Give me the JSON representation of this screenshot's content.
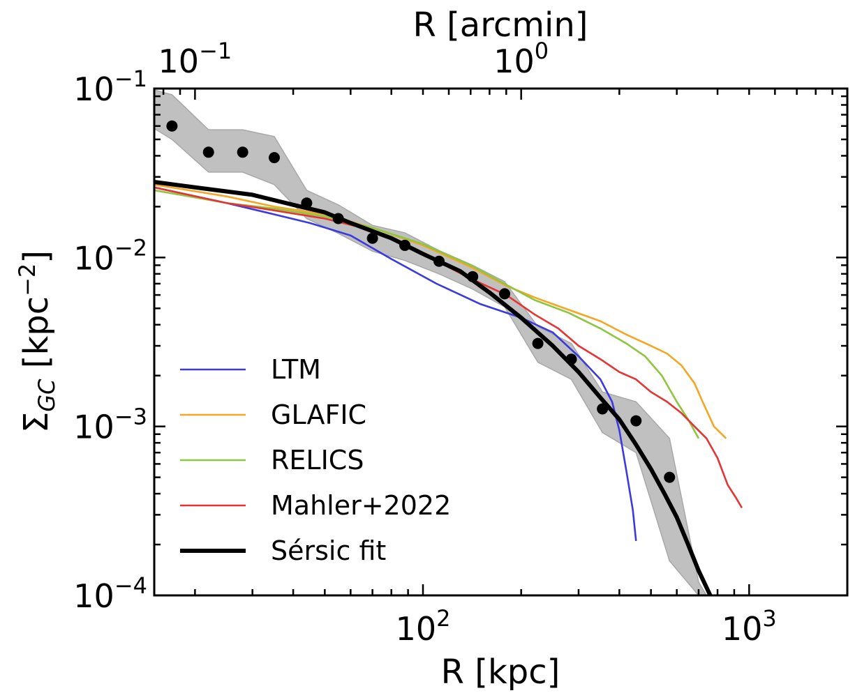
{
  "chart_data": {
    "type": "line",
    "xlabel": "R [kpc]",
    "ylabel_main": "Σ",
    "ylabel_sub": "GC",
    "ylabel_unit": " [kpc",
    "ylabel_unit_exp": "−2",
    "ylabel_close": "]",
    "x2label": "R [arcmin]",
    "xscale": "log",
    "yscale": "log",
    "xlim": [
      15,
      2000
    ],
    "ylim": [
      0.0001,
      0.1
    ],
    "arcmin_to_kpc": 200,
    "x_ticks": [
      {
        "value": 100,
        "base": "10",
        "exp": "2"
      },
      {
        "value": 1000,
        "base": "10",
        "exp": "3"
      }
    ],
    "y_ticks": [
      {
        "value": 0.1,
        "base": "10",
        "exp": "−1"
      },
      {
        "value": 0.01,
        "base": "10",
        "exp": "−2"
      },
      {
        "value": 0.001,
        "base": "10",
        "exp": "−3"
      },
      {
        "value": 0.0001,
        "base": "10",
        "exp": "−4"
      }
    ],
    "x2_ticks": [
      {
        "value": 0.1,
        "base": "10",
        "exp": "−1"
      },
      {
        "value": 1,
        "base": "10",
        "exp": "0"
      }
    ],
    "legend_position": "lower-left",
    "series": [
      {
        "name": "LTM",
        "color": "#3a3ae0",
        "x": [
          15,
          25,
          35,
          45,
          60,
          80,
          110,
          150,
          200,
          250,
          300,
          350,
          380,
          400,
          420,
          440,
          450
        ],
        "y": [
          0.026,
          0.021,
          0.018,
          0.016,
          0.0135,
          0.0098,
          0.007,
          0.0053,
          0.0044,
          0.0036,
          0.0026,
          0.0019,
          0.0014,
          0.00095,
          0.00055,
          0.00032,
          0.00021
        ]
      },
      {
        "name": "GLAFIC",
        "color": "#f5a623",
        "x": [
          15,
          25,
          35,
          50,
          70,
          100,
          140,
          180,
          220,
          280,
          350,
          420,
          500,
          560,
          620,
          680,
          720,
          780,
          850
        ],
        "y": [
          0.027,
          0.023,
          0.02,
          0.018,
          0.015,
          0.0118,
          0.0088,
          0.0068,
          0.0058,
          0.0049,
          0.0042,
          0.0035,
          0.003,
          0.0027,
          0.0023,
          0.0018,
          0.0014,
          0.001,
          0.00085
        ]
      },
      {
        "name": "RELICS",
        "color": "#8ec63f",
        "x": [
          15,
          25,
          35,
          50,
          70,
          100,
          140,
          180,
          220,
          280,
          350,
          420,
          480,
          540,
          600,
          650,
          700
        ],
        "y": [
          0.025,
          0.021,
          0.0195,
          0.0175,
          0.015,
          0.012,
          0.009,
          0.0069,
          0.0056,
          0.0047,
          0.0038,
          0.0031,
          0.0026,
          0.002,
          0.0014,
          0.0011,
          0.00085
        ]
      },
      {
        "name": "Mahler+2022",
        "color": "#e63333",
        "x": [
          15,
          25,
          35,
          50,
          70,
          100,
          140,
          180,
          220,
          260,
          300,
          350,
          400,
          450,
          500,
          560,
          620,
          680,
          740,
          800,
          860,
          910,
          950
        ],
        "y": [
          0.026,
          0.021,
          0.019,
          0.017,
          0.0145,
          0.0105,
          0.0075,
          0.006,
          0.0046,
          0.0038,
          0.003,
          0.0025,
          0.0021,
          0.0019,
          0.0016,
          0.0014,
          0.0012,
          0.001,
          0.00085,
          0.00065,
          0.00045,
          0.00038,
          0.00033
        ]
      },
      {
        "name": "Sérsic fit",
        "color": "#000000",
        "x": [
          15,
          20,
          30,
          40,
          50,
          60,
          80,
          100,
          130,
          160,
          200,
          250,
          300,
          350,
          400,
          450,
          500,
          550,
          600,
          650,
          700,
          760
        ],
        "y": [
          0.028,
          0.026,
          0.0235,
          0.0205,
          0.0185,
          0.016,
          0.013,
          0.0105,
          0.0083,
          0.0062,
          0.0044,
          0.003,
          0.0021,
          0.00148,
          0.0011,
          0.00078,
          0.00056,
          0.0004,
          0.00029,
          0.0002,
          0.00014,
          0.0001
        ]
      }
    ],
    "data_points": {
      "x": [
        17,
        22,
        28,
        35,
        44,
        55,
        70,
        88,
        112,
        142,
        178,
        225,
        285,
        355,
        450,
        570
      ],
      "y": [
        0.06,
        0.042,
        0.042,
        0.039,
        0.021,
        0.017,
        0.013,
        0.0118,
        0.0095,
        0.0077,
        0.0061,
        0.0031,
        0.0025,
        0.00127,
        0.00108,
        0.0005
      ]
    },
    "error_band": {
      "color": "#c0c0c0",
      "x": [
        15,
        17,
        22,
        28,
        35,
        44,
        55,
        70,
        88,
        112,
        142,
        178,
        225,
        285,
        355,
        450,
        570,
        700,
        740
      ],
      "upper": [
        0.098,
        0.092,
        0.057,
        0.057,
        0.052,
        0.025,
        0.0205,
        0.0155,
        0.014,
        0.011,
        0.009,
        0.0072,
        0.0039,
        0.0031,
        0.0016,
        0.0014,
        0.00085,
        0.00012,
        0.0001
      ],
      "lower": [
        0.058,
        0.05,
        0.032,
        0.032,
        0.027,
        0.017,
        0.0139,
        0.0109,
        0.0096,
        0.008,
        0.0065,
        0.0051,
        0.0024,
        0.0019,
        0.00092,
        0.0007,
        0.00016,
        0.0001,
        0.0001
      ]
    }
  }
}
